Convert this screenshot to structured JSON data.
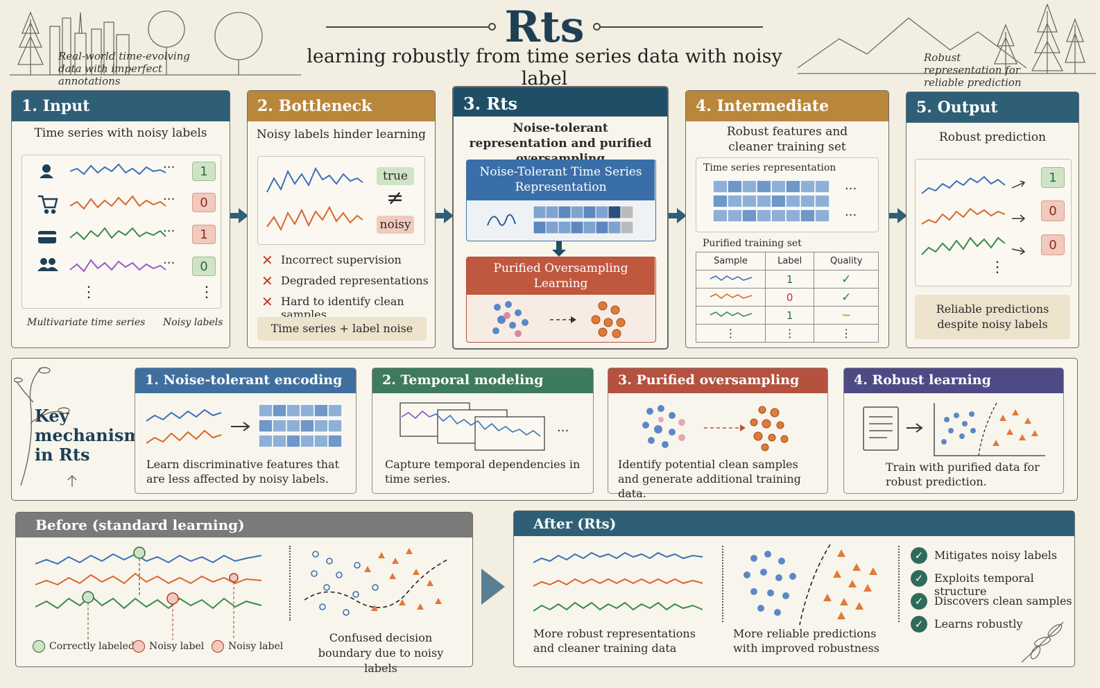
{
  "title": "Rts",
  "subtitle": "learning robustly from time series data with noisy label",
  "corner_left": "Real-world time-evolving data with imperfect annotations",
  "corner_right": "Robust representation for reliable prediction",
  "steps": [
    {
      "header": "1.  Input",
      "caption": "Time series with noisy labels",
      "labels": [
        "1",
        "0",
        "1",
        "0"
      ],
      "ellipsis": "···",
      "vdots": "⋮",
      "foot_left": "Multivariate time series",
      "foot_right": "Noisy labels"
    },
    {
      "header": "2.  Bottleneck",
      "caption": "Noisy labels hinder learning",
      "true_tag": "true",
      "neq": "≠",
      "noisy_tag": "noisy",
      "issues": [
        "Incorrect supervision",
        "Degraded representations",
        "Hard to identify clean samples"
      ],
      "footer": "Time series + label noise"
    },
    {
      "header": "3.  Rts",
      "caption": "Noise-tolerant representation and purified oversampling",
      "block1": "Noise-Tolerant Time Series Representation",
      "block2": "Purified Oversampling Learning"
    },
    {
      "header": "4.  Intermediate",
      "caption": "Robust features and cleaner training set",
      "rep_title": "Time series representation",
      "ellipsis": "···",
      "set_title": "Purified training set",
      "table_headers": [
        "Sample",
        "Label",
        "Quality"
      ],
      "table_labels": [
        "1",
        "0",
        "1"
      ],
      "table_quality": [
        "✓",
        "✓",
        "~"
      ],
      "vdots": "⋮"
    },
    {
      "header": "5.  Output",
      "caption": "Robust prediction",
      "labels": [
        "1",
        "0",
        "0"
      ],
      "vdots": "⋮",
      "footer": "Reliable predictions despite noisy labels"
    }
  ],
  "key_title": "Key mechanisms in Rts",
  "mechanisms": [
    {
      "header": "1.  Noise-tolerant encoding",
      "text": "Learn discriminative features that are less affected by noisy labels.",
      "color": "#3f6f9f"
    },
    {
      "header": "2.  Temporal modeling",
      "text": "Capture temporal dependencies in time series.",
      "ellipsis": "···",
      "color": "#3e7a5c"
    },
    {
      "header": "3.  Purified oversampling",
      "text": "Identify potential clean samples and generate additional training data.",
      "color": "#b4513f"
    },
    {
      "header": "4.  Robust learning",
      "text": "Train with purified data for robust prediction.",
      "color": "#4e4a86"
    }
  ],
  "before": {
    "header": "Before (standard learning)",
    "legend": [
      "Correctly labeled",
      "Noisy label",
      "Noisy label"
    ],
    "caption": "Confused decision boundary due to noisy labels"
  },
  "after": {
    "header": "After (Rts)",
    "caption1": "More robust representations and cleaner training data",
    "caption2": "More reliable predictions with improved robustness",
    "checks": [
      "Mitigates noisy labels",
      "Exploits temporal structure",
      "Discovers clean samples",
      "Learns robustly"
    ]
  }
}
